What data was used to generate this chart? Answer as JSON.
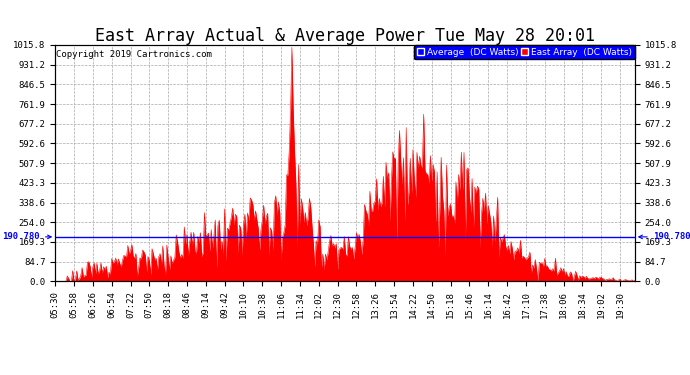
{
  "title": "East Array Actual & Average Power Tue May 28 20:01",
  "copyright": "Copyright 2019 Cartronics.com",
  "legend_labels": [
    "Average  (DC Watts)",
    "East Array  (DC Watts)"
  ],
  "legend_colors_bg": [
    "blue",
    "red"
  ],
  "average_line": 190.78,
  "average_label": "190.780",
  "ylim": [
    0.0,
    1015.8
  ],
  "yticks": [
    0.0,
    84.7,
    169.3,
    254.0,
    338.6,
    423.3,
    507.9,
    592.6,
    677.2,
    761.9,
    846.5,
    931.2,
    1015.8
  ],
  "background_color": "#ffffff",
  "plot_bg_color": "#ffffff",
  "grid_color": "#aaaaaa",
  "area_color": "red",
  "line_color": "blue",
  "title_fontsize": 12,
  "tick_fontsize": 6.5
}
